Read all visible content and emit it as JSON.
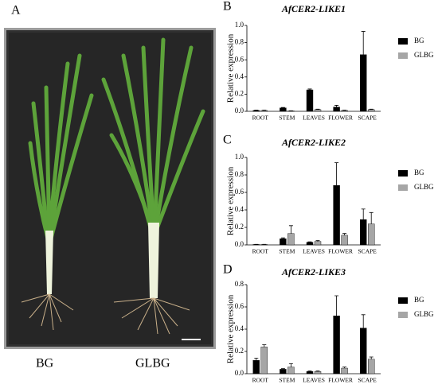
{
  "panel_a": {
    "label": "A",
    "captions": [
      "BG",
      "GLBG"
    ]
  },
  "chart_data": [
    {
      "type": "bar",
      "panel": "B",
      "title": "AfCER2-LIKE1",
      "ylabel": "Relative expression",
      "categories": [
        "ROOT",
        "STEM",
        "LEAVES",
        "FLOWER",
        "SCAPE"
      ],
      "series": [
        {
          "name": "BG",
          "color": "#000000",
          "values": [
            0.01,
            0.04,
            0.25,
            0.05,
            0.66
          ],
          "errors": [
            0.005,
            0.005,
            0.01,
            0.02,
            0.27
          ]
        },
        {
          "name": "GLBG",
          "color": "#a6a6a6",
          "values": [
            0.01,
            0.005,
            0.02,
            0.01,
            0.02
          ],
          "errors": [
            0.005,
            0.002,
            0.005,
            0.005,
            0.005
          ]
        }
      ],
      "ylim": [
        0,
        1.0
      ],
      "yticks": [
        {
          "value": 0,
          "label": "0.0"
        },
        0.2,
        0.4,
        0.6,
        0.8,
        {
          "value": 1.0,
          "label": "1.0"
        }
      ]
    },
    {
      "type": "bar",
      "panel": "C",
      "title": "AfCER2-LIKE2",
      "ylabel": "Relative expression",
      "categories": [
        "ROOT",
        "STEM",
        "LEAVES",
        "FLOWER",
        "SCAPE"
      ],
      "series": [
        {
          "name": "BG",
          "color": "#000000",
          "values": [
            0.005,
            0.07,
            0.03,
            0.68,
            0.29
          ],
          "errors": [
            0.002,
            0.01,
            0.005,
            0.26,
            0.12
          ]
        },
        {
          "name": "GLBG",
          "color": "#a6a6a6",
          "values": [
            0.005,
            0.13,
            0.04,
            0.11,
            0.24
          ],
          "errors": [
            0.002,
            0.09,
            0.01,
            0.02,
            0.13
          ]
        }
      ],
      "ylim": [
        0,
        1.0
      ],
      "yticks": [
        {
          "value": 0,
          "label": "0.0"
        },
        0.2,
        0.4,
        0.6,
        0.8,
        {
          "value": 1.0,
          "label": "1.0"
        }
      ]
    },
    {
      "type": "bar",
      "panel": "D",
      "title": "AfCER2-LIKE3",
      "ylabel": "Relative expression",
      "categories": [
        "ROOT",
        "STEM",
        "LEAVES",
        "FLOWER",
        "SCAPE"
      ],
      "series": [
        {
          "name": "BG",
          "color": "#000000",
          "values": [
            0.12,
            0.04,
            0.02,
            0.52,
            0.41
          ],
          "errors": [
            0.02,
            0.005,
            0.005,
            0.18,
            0.12
          ]
        },
        {
          "name": "GLBG",
          "color": "#a6a6a6",
          "values": [
            0.24,
            0.06,
            0.02,
            0.05,
            0.13
          ],
          "errors": [
            0.02,
            0.03,
            0.005,
            0.01,
            0.02
          ]
        }
      ],
      "ylim": [
        0,
        0.8
      ],
      "yticks": [
        {
          "value": 0,
          "label": "0.0"
        },
        0.2,
        0.4,
        0.6,
        0.8
      ]
    }
  ]
}
